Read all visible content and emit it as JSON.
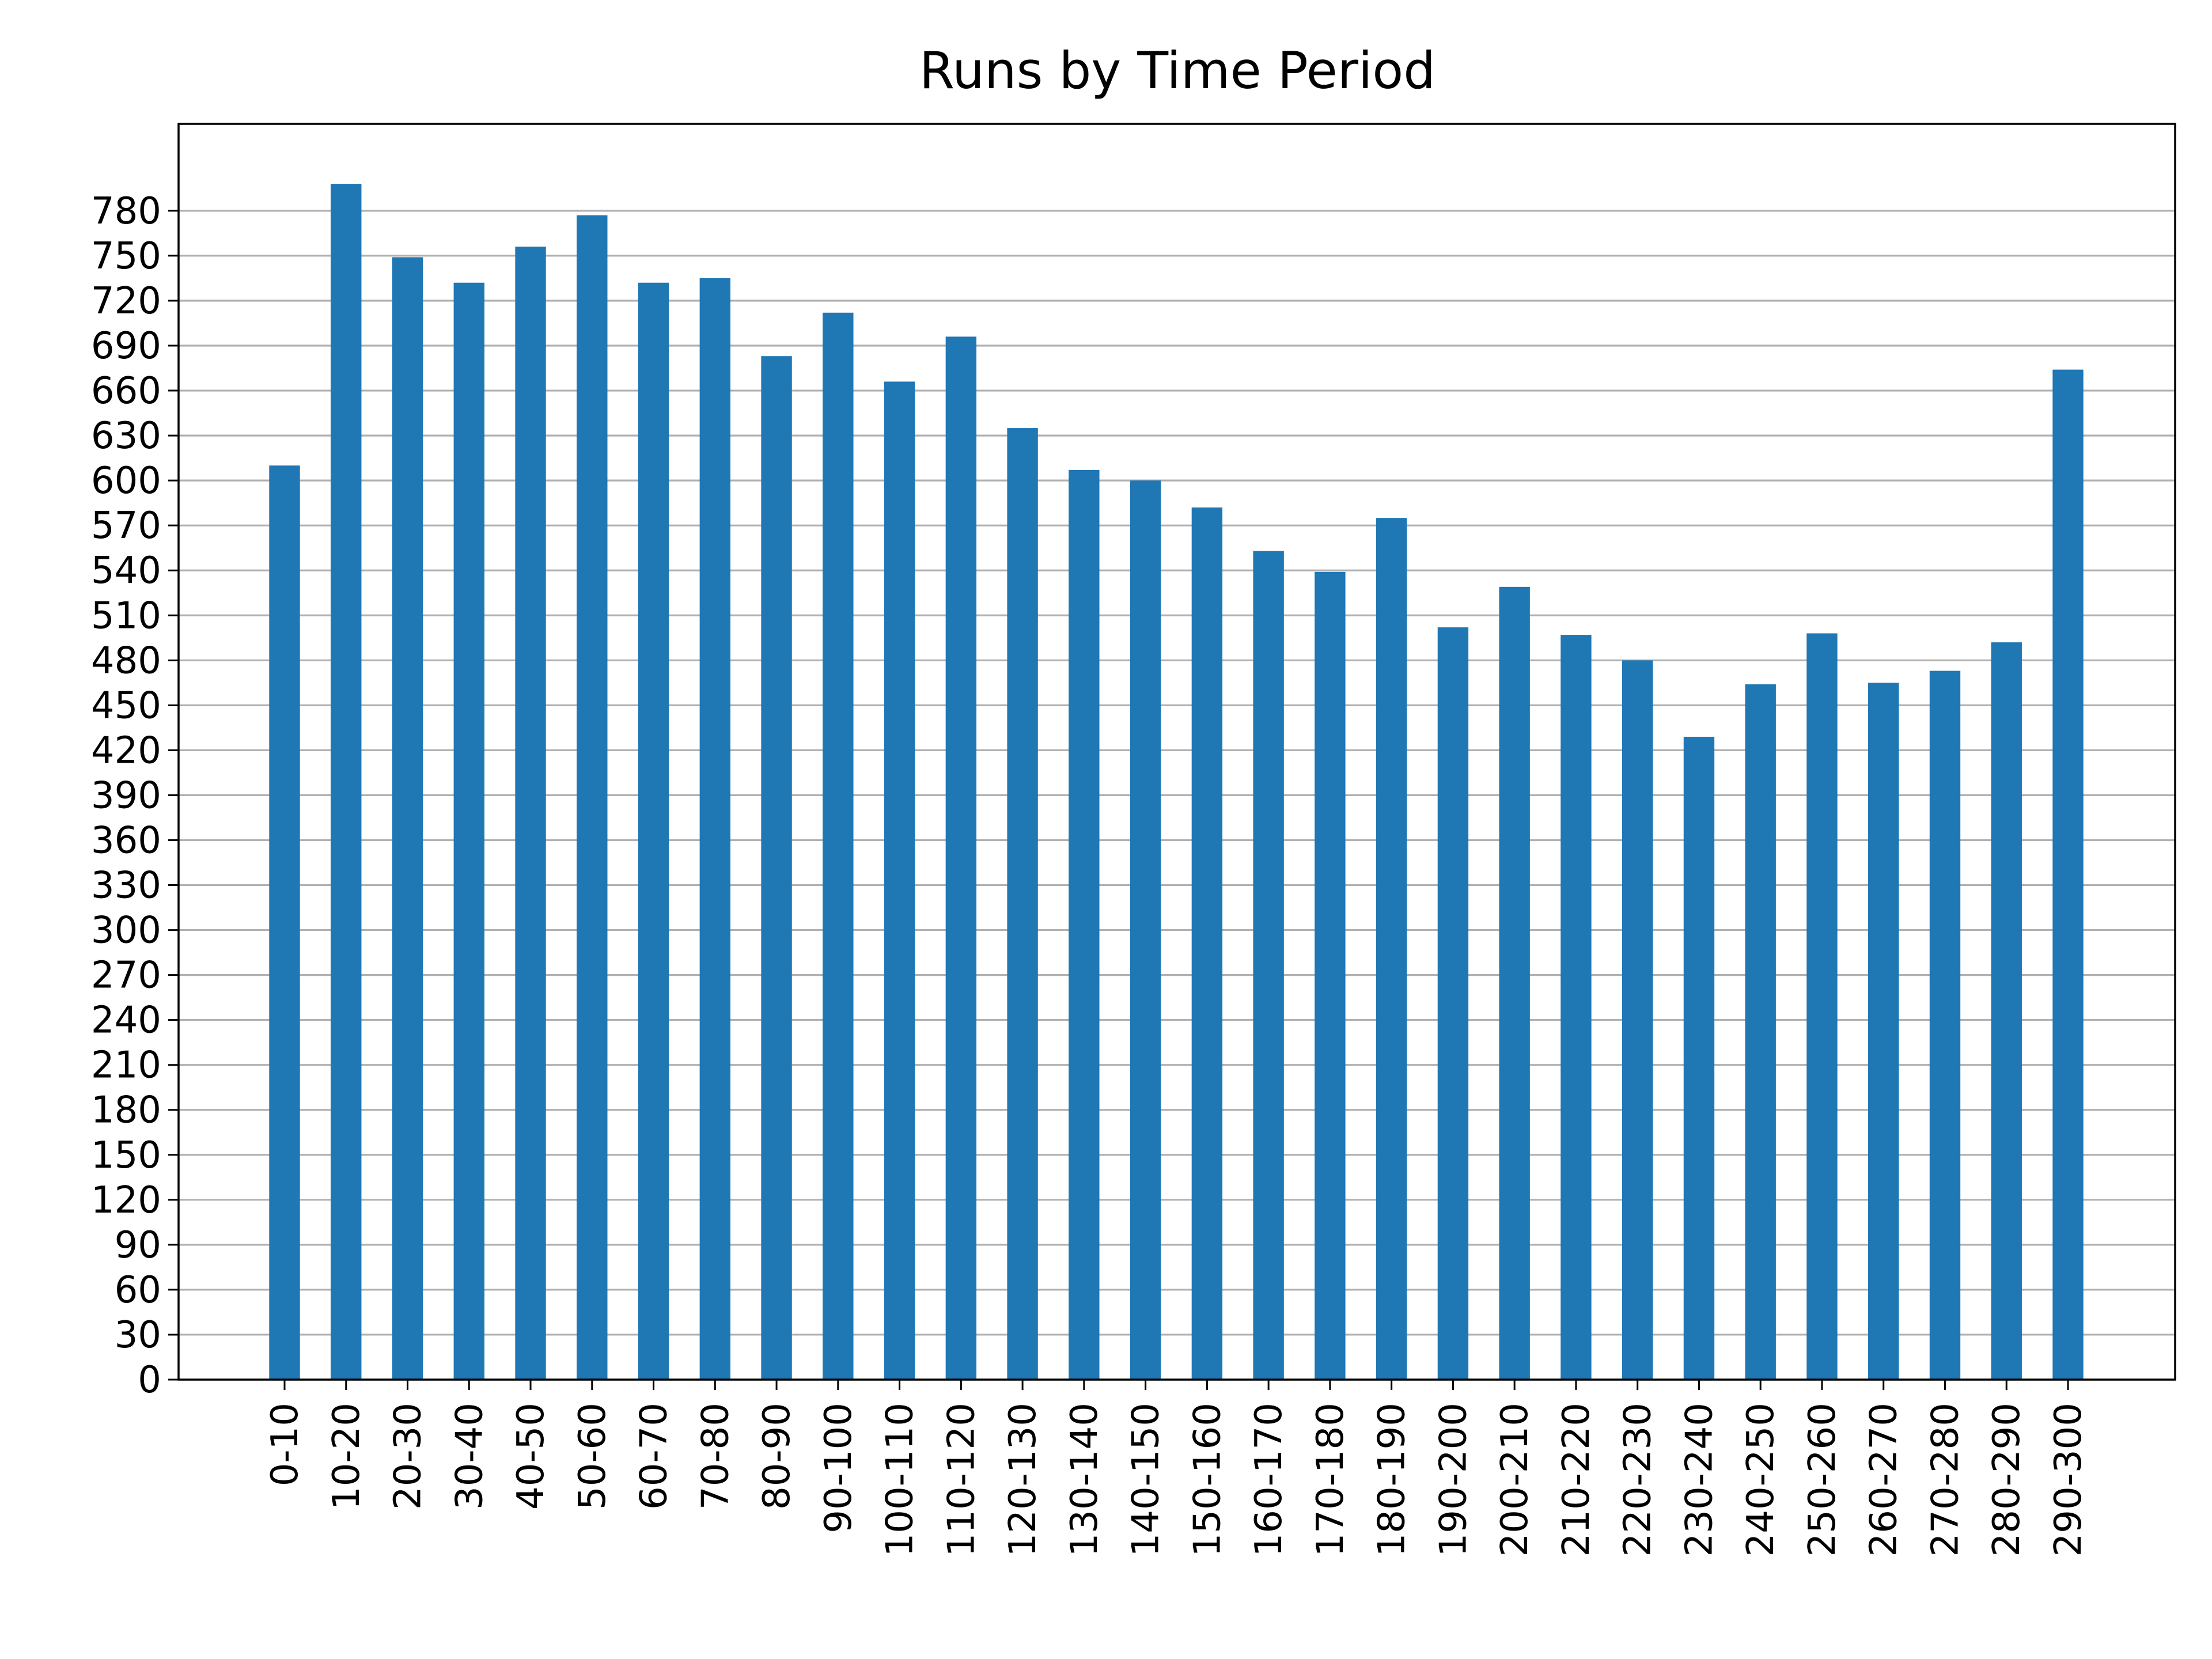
{
  "chart_data": {
    "type": "bar",
    "title": "Runs by Time Period",
    "xlabel": "",
    "ylabel": "",
    "categories": [
      "0-10",
      "10-20",
      "20-30",
      "30-40",
      "40-50",
      "50-60",
      "60-70",
      "70-80",
      "80-90",
      "90-100",
      "100-110",
      "110-120",
      "120-130",
      "130-140",
      "140-150",
      "150-160",
      "160-170",
      "170-180",
      "180-190",
      "190-200",
      "200-210",
      "210-220",
      "220-230",
      "230-240",
      "240-250",
      "250-260",
      "260-270",
      "270-280",
      "280-290",
      "290-300"
    ],
    "values": [
      610,
      798,
      749,
      732,
      756,
      777,
      732,
      735,
      683,
      712,
      666,
      696,
      635,
      607,
      600,
      582,
      553,
      539,
      575,
      502,
      529,
      497,
      480,
      429,
      464,
      498,
      465,
      473,
      492,
      674
    ],
    "yticks": [
      0,
      30,
      60,
      90,
      120,
      150,
      180,
      210,
      240,
      270,
      300,
      330,
      360,
      390,
      420,
      450,
      480,
      510,
      540,
      570,
      600,
      630,
      660,
      690,
      720,
      750,
      780
    ],
    "ylim": [
      0,
      838
    ],
    "grid": "y",
    "bar_color": "#1f77b4"
  }
}
